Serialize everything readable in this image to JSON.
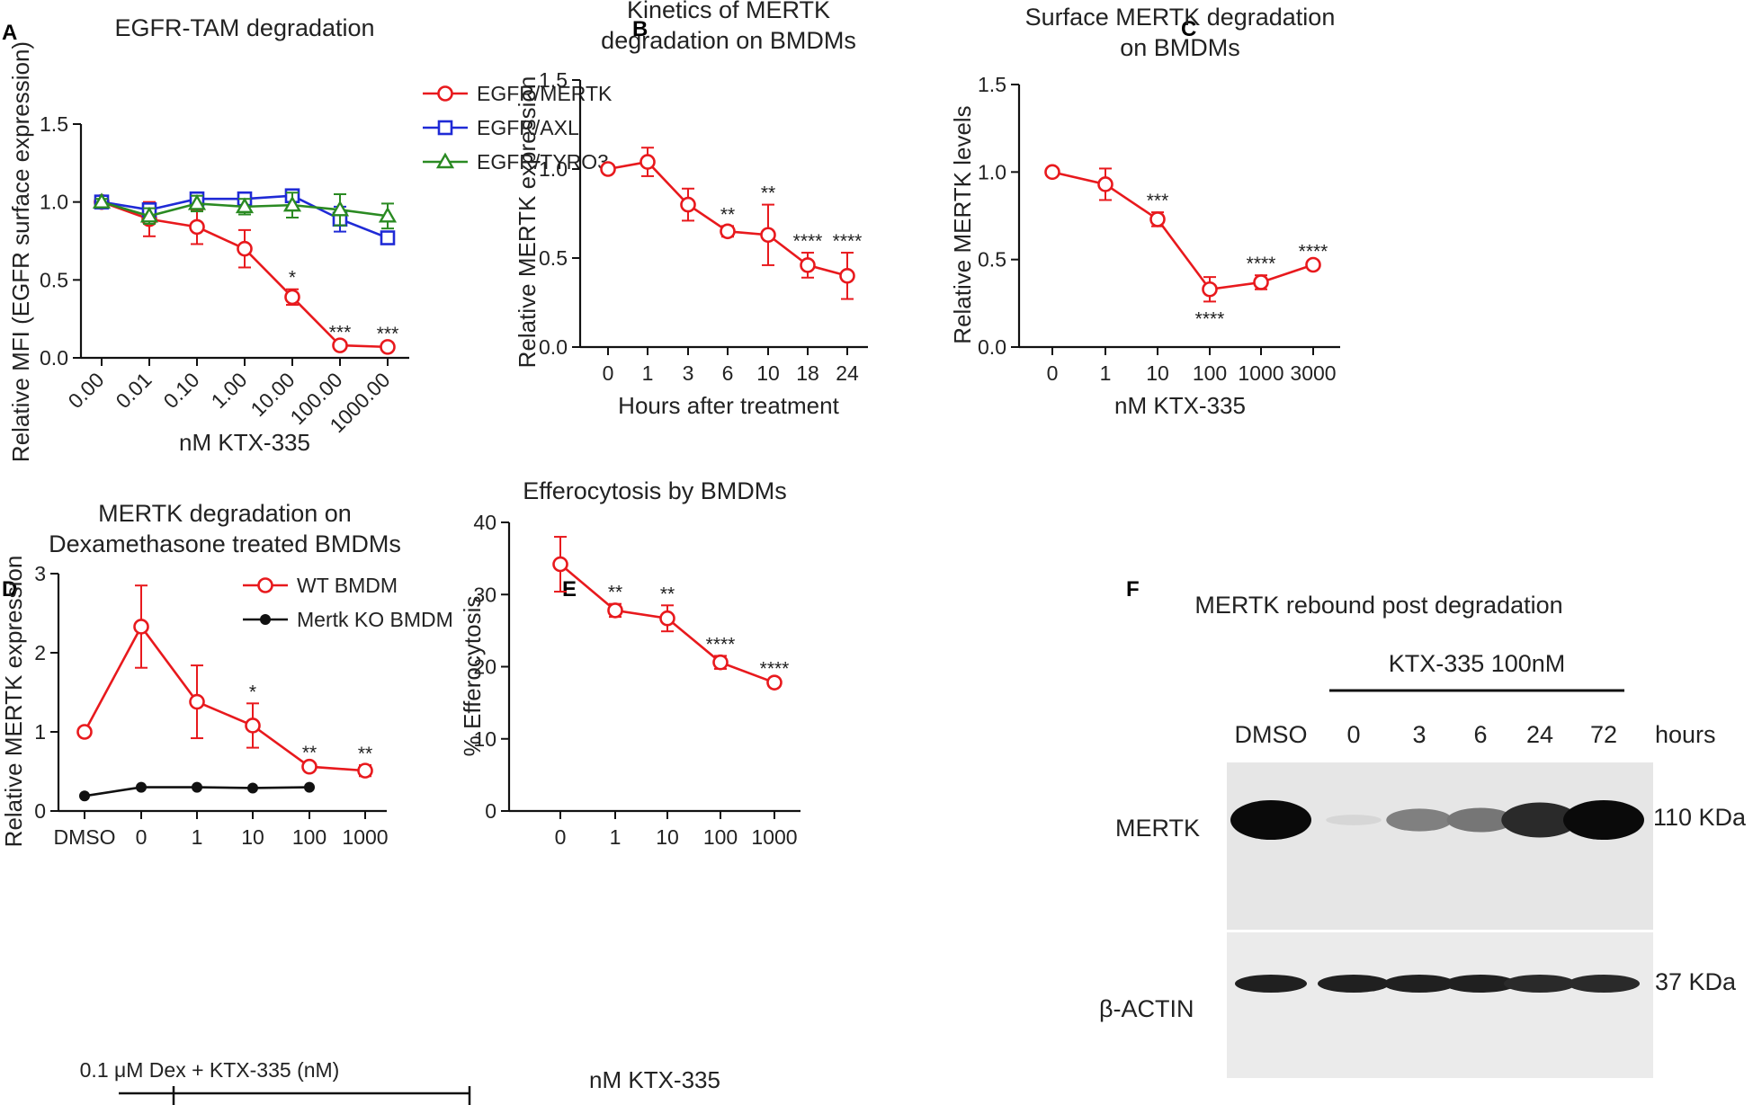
{
  "colors": {
    "red": "#e8191d",
    "blue": "#1f2ad6",
    "green": "#2a8a22",
    "black": "#111111"
  },
  "chart_data": [
    {
      "panel": "A",
      "type": "line",
      "title": "EGFR-TAM degradation",
      "xlabel": "nM KTX-335",
      "ylabel": "Relative MFI (EGFR surface expression)",
      "categories": [
        "0.00",
        "0.01",
        "0.10",
        "1.00",
        "10.00",
        "100.00",
        "1000.00"
      ],
      "ylim": [
        0,
        1.5
      ],
      "yticks": [
        "0.0",
        "0.5",
        "1.0",
        "1.5"
      ],
      "series": [
        {
          "name": "EGFR/MERTK",
          "color": "#e8191d",
          "marker": "circle",
          "values": [
            1.0,
            0.89,
            0.84,
            0.7,
            0.39,
            0.08,
            0.07
          ],
          "errors": [
            0.02,
            0.11,
            0.11,
            0.12,
            0.05,
            0.01,
            0.01
          ]
        },
        {
          "name": "EGFR/AXL",
          "color": "#1f2ad6",
          "marker": "square",
          "values": [
            1.0,
            0.95,
            1.02,
            1.02,
            1.04,
            0.89,
            0.77
          ],
          "errors": [
            0.02,
            0.04,
            0.02,
            0.03,
            0.03,
            0.08,
            0.03
          ]
        },
        {
          "name": "EGFR/TYRO3",
          "color": "#2a8a22",
          "marker": "triangle",
          "values": [
            1.0,
            0.91,
            0.99,
            0.97,
            0.98,
            0.95,
            0.91
          ],
          "errors": [
            0.02,
            0.05,
            0.05,
            0.05,
            0.08,
            0.1,
            0.08
          ]
        }
      ],
      "annotations": [
        {
          "index": 4,
          "text": "*"
        },
        {
          "index": 5,
          "text": "***"
        },
        {
          "index": 6,
          "text": "***"
        }
      ]
    },
    {
      "panel": "B",
      "type": "line",
      "title": "Kinetics of MERTK degradation on BMDMs",
      "title_lines": [
        "Kinetics of MERTK",
        "degradation on BMDMs"
      ],
      "xlabel": "Hours after treatment",
      "ylabel": "Relative MERTK expression",
      "categories": [
        "0",
        "1",
        "3",
        "6",
        "10",
        "18",
        "24"
      ],
      "ylim": [
        0,
        1.5
      ],
      "yticks": [
        "0.0",
        "0.5",
        "1.0",
        "1.5"
      ],
      "series": [
        {
          "name": "MERTK",
          "color": "#e8191d",
          "marker": "circle",
          "values": [
            1.0,
            1.04,
            0.8,
            0.65,
            0.63,
            0.46,
            0.4
          ],
          "errors": [
            0.01,
            0.08,
            0.09,
            0.03,
            0.17,
            0.07,
            0.13
          ]
        }
      ],
      "annotations": [
        {
          "index": 3,
          "text": "**"
        },
        {
          "index": 4,
          "text": "**"
        },
        {
          "index": 5,
          "text": "****"
        },
        {
          "index": 6,
          "text": "****"
        }
      ]
    },
    {
      "panel": "C",
      "type": "line",
      "title": "Surface MERTK degradation on BMDMs",
      "title_lines": [
        "Surface MERTK degradation",
        "on BMDMs"
      ],
      "xlabel": "nM KTX-335",
      "ylabel": "Relative MERTK levels",
      "categories": [
        "0",
        "1",
        "10",
        "100",
        "1000",
        "3000"
      ],
      "ylim": [
        0,
        1.5
      ],
      "yticks": [
        "0.0",
        "0.5",
        "1.0",
        "1.5"
      ],
      "series": [
        {
          "name": "MERTK",
          "color": "#e8191d",
          "marker": "circle",
          "values": [
            1.0,
            0.93,
            0.73,
            0.33,
            0.37,
            0.47
          ],
          "errors": [
            0.01,
            0.09,
            0.04,
            0.07,
            0.04,
            0.01
          ]
        }
      ],
      "annotations": [
        {
          "index": 2,
          "text": "***",
          "pos": "above"
        },
        {
          "index": 3,
          "text": "****",
          "pos": "below"
        },
        {
          "index": 4,
          "text": "****",
          "pos": "above"
        },
        {
          "index": 5,
          "text": "****",
          "pos": "above"
        }
      ]
    },
    {
      "panel": "D",
      "type": "line",
      "title": "MERTK degradation on Dexamethasone treated BMDMs",
      "title_lines": [
        "MERTK degradation on",
        "Dexamethasone treated BMDMs"
      ],
      "xlabel": "",
      "ylabel": "Relative MERTK expression",
      "categories": [
        "DMSO",
        "0",
        "1",
        "10",
        "100",
        "1000"
      ],
      "bracket_label": "0.1 μM Dex + KTX-335 (nM)",
      "ylim": [
        0,
        3
      ],
      "yticks": [
        "0",
        "1",
        "2",
        "3"
      ],
      "series": [
        {
          "name": "WT BMDM",
          "color": "#e8191d",
          "marker": "circle",
          "values": [
            1.0,
            2.33,
            1.38,
            1.08,
            0.56,
            0.51
          ],
          "errors": [
            0.01,
            0.52,
            0.46,
            0.28,
            0.03,
            0.07
          ]
        },
        {
          "name": "Mertk KO BMDM",
          "color": "#111111",
          "marker": "dot",
          "values": [
            0.19,
            0.3,
            0.3,
            0.29,
            0.3,
            null
          ],
          "errors": [
            0,
            0,
            0,
            0,
            0,
            null
          ]
        }
      ],
      "annotations": [
        {
          "index": 3,
          "text": "*"
        },
        {
          "index": 4,
          "text": "**"
        },
        {
          "index": 5,
          "text": "**"
        }
      ]
    },
    {
      "panel": "E",
      "type": "line",
      "title": "Efferocytosis by BMDMs",
      "xlabel": "nM KTX-335",
      "ylabel": "% Efferocytosis",
      "categories": [
        "0",
        "1",
        "10",
        "100",
        "1000"
      ],
      "ylim": [
        0,
        40
      ],
      "yticks": [
        "0",
        "10",
        "20",
        "30",
        "40"
      ],
      "series": [
        {
          "name": "Efferocytosis",
          "color": "#e8191d",
          "marker": "circle",
          "values": [
            34.2,
            27.8,
            26.7,
            20.6,
            17.8
          ],
          "errors": [
            3.8,
            0.9,
            1.8,
            0.9,
            0.3
          ]
        }
      ],
      "annotations": [
        {
          "index": 1,
          "text": "**"
        },
        {
          "index": 2,
          "text": "**"
        },
        {
          "index": 3,
          "text": "****"
        },
        {
          "index": 4,
          "text": "****"
        }
      ]
    }
  ],
  "blot": {
    "panel": "F",
    "title": "MERTK rebound post degradation",
    "treatment": "KTX-335 100nM",
    "lanes": [
      "DMSO",
      "0",
      "3",
      "6",
      "24",
      "72"
    ],
    "unit": "hours",
    "rows": [
      {
        "label": "MERTK",
        "size": "110 KDa",
        "intensity": [
          1.0,
          0.05,
          0.45,
          0.5,
          0.85,
          1.0
        ]
      },
      {
        "label": "β-ACTIN",
        "size": "37 KDa",
        "intensity": [
          0.9,
          0.9,
          0.9,
          0.9,
          0.85,
          0.85
        ]
      }
    ]
  }
}
